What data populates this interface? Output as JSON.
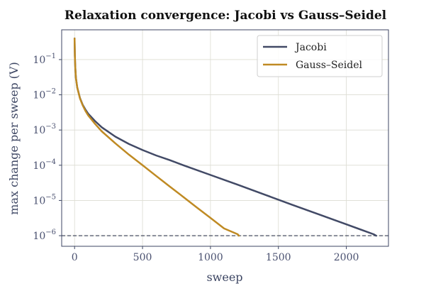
{
  "chart_data": {
    "type": "line",
    "title": "Relaxation convergence: Jacobi vs Gauss–Seidel",
    "xlabel": "sweep",
    "ylabel": "max change per sweep (V)",
    "xlim": [
      -95,
      2310
    ],
    "ylim": [
      5e-07,
      0.7
    ],
    "yscale": "log",
    "x_ticks": [
      0,
      500,
      1000,
      1500,
      2000
    ],
    "x_tick_labels": [
      "0",
      "500",
      "1000",
      "1500",
      "2000"
    ],
    "y_ticks": [
      1e-06,
      1e-05,
      0.0001,
      0.001,
      0.01,
      0.1
    ],
    "y_tick_labels": [
      {
        "base": "10",
        "exp": "−6"
      },
      {
        "base": "10",
        "exp": "−5"
      },
      {
        "base": "10",
        "exp": "−4"
      },
      {
        "base": "10",
        "exp": "−3"
      },
      {
        "base": "10",
        "exp": "−2"
      },
      {
        "base": "10",
        "exp": "−1"
      }
    ],
    "grid": true,
    "legend_position": "top-right",
    "threshold": 1e-06,
    "series": [
      {
        "name": "Jacobi",
        "color": "#424a66",
        "x": [
          0,
          2,
          5,
          10,
          20,
          40,
          60,
          80,
          100,
          150,
          200,
          300,
          400,
          500,
          600,
          700,
          800,
          1000,
          1200,
          1400,
          1600,
          1800,
          2000,
          2200,
          2220
        ],
        "y": [
          0.4,
          0.13,
          0.06,
          0.03,
          0.016,
          0.008,
          0.0052,
          0.0038,
          0.0029,
          0.0018,
          0.0012,
          0.00065,
          0.0004,
          0.00027,
          0.00019,
          0.00014,
          0.0001,
          5.3e-05,
          2.8e-05,
          1.46e-05,
          7.6e-06,
          4e-06,
          2.1e-06,
          1.1e-06,
          1e-06
        ]
      },
      {
        "name": "Gauss–Seidel",
        "color": "#bf8a23",
        "x": [
          0,
          2,
          5,
          10,
          20,
          40,
          60,
          80,
          100,
          150,
          200,
          300,
          400,
          500,
          600,
          700,
          800,
          900,
          1000,
          1100,
          1200,
          1210
        ],
        "y": [
          0.4,
          0.13,
          0.06,
          0.03,
          0.016,
          0.0078,
          0.005,
          0.0035,
          0.0026,
          0.0015,
          0.00092,
          0.00042,
          0.0002,
          0.0001,
          5e-05,
          2.5e-05,
          1.26e-05,
          6.3e-06,
          3.2e-06,
          1.6e-06,
          1.1e-06,
          1e-06
        ]
      }
    ]
  }
}
